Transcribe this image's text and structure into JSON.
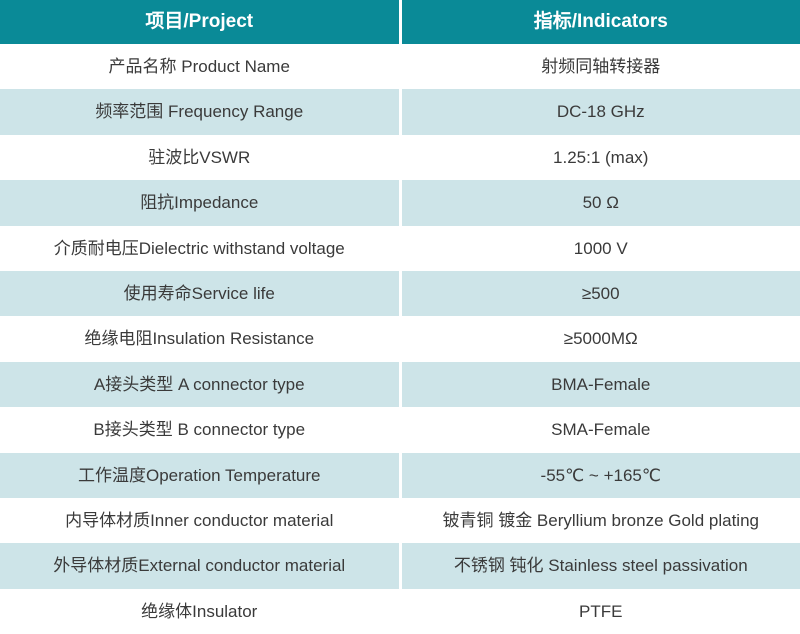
{
  "colors": {
    "header_bg": "#0a8a97",
    "header_text": "#ffffff",
    "row_bg": "#ffffff",
    "row_alt_bg": "#cde4e8",
    "divider": "#ffffff",
    "body_text": "#3a3a3a"
  },
  "table": {
    "headers": [
      {
        "label": "项目/Project"
      },
      {
        "label": "指标/Indicators"
      }
    ],
    "rows": [
      {
        "project": "产品名称 Product Name",
        "indicator": "射频同轴转接器"
      },
      {
        "project": "频率范围 Frequency Range",
        "indicator": "DC-18 GHz"
      },
      {
        "project": "驻波比VSWR",
        "indicator": "1.25:1 (max)"
      },
      {
        "project": "阻抗Impedance",
        "indicator": "50 Ω"
      },
      {
        "project": "介质耐电压Dielectric withstand voltage",
        "indicator": "1000 V"
      },
      {
        "project": "使用寿命Service life",
        "indicator": "≥500"
      },
      {
        "project": "绝缘电阻Insulation Resistance",
        "indicator": "≥5000MΩ"
      },
      {
        "project": "A接头类型 A connector type",
        "indicator": "BMA-Female"
      },
      {
        "project": "B接头类型 B connector type",
        "indicator": "SMA-Female"
      },
      {
        "project": "工作温度Operation Temperature",
        "indicator": "-55℃ ~ +165℃"
      },
      {
        "project": "内导体材质Inner conductor material",
        "indicator": "铍青铜 镀金 Beryllium bronze Gold plating"
      },
      {
        "project": "外导体材质External conductor material",
        "indicator": "不锈钢 钝化 Stainless steel passivation"
      },
      {
        "project": "绝缘体Insulator",
        "indicator": "PTFE"
      }
    ]
  }
}
